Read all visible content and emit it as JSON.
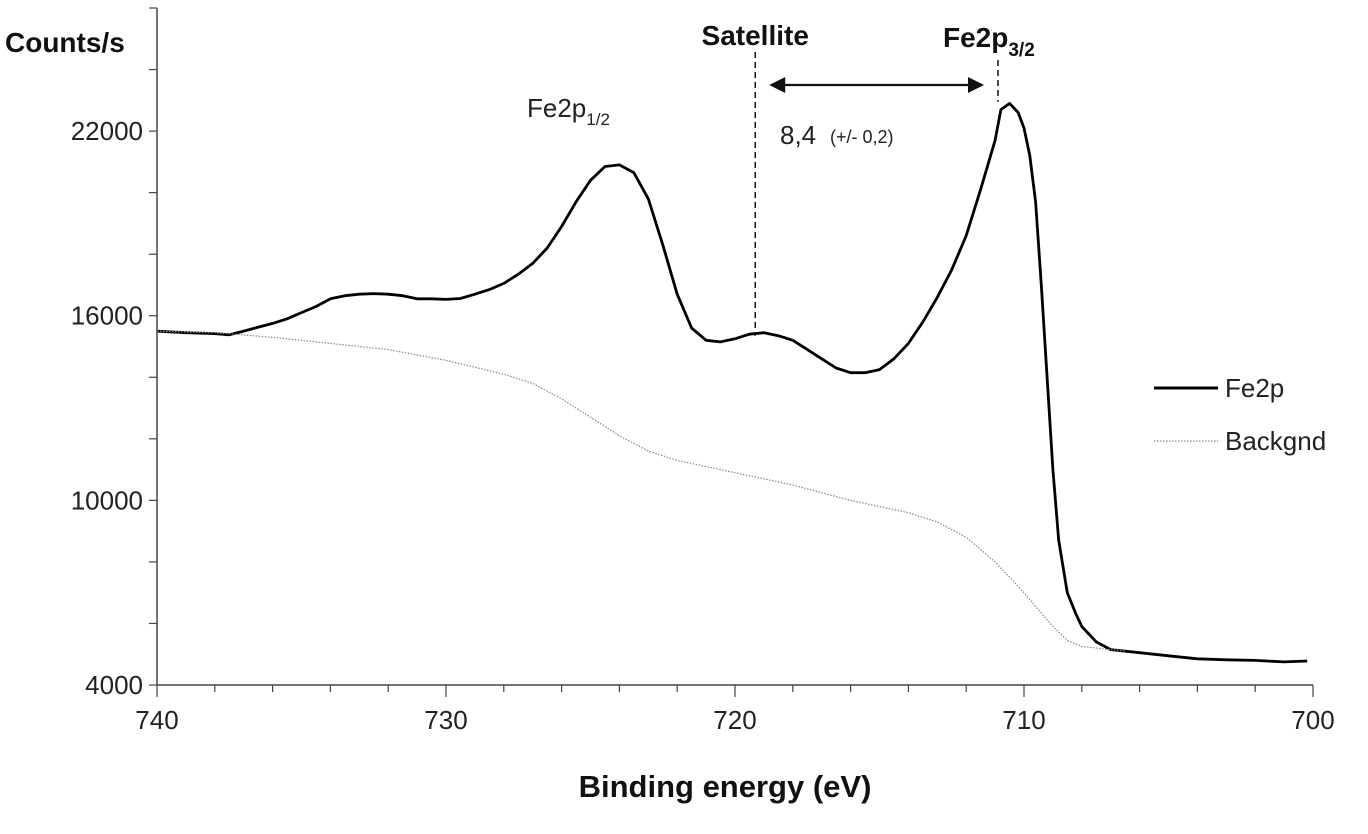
{
  "chart_data": {
    "type": "line",
    "xlabel": "Binding energy (eV)",
    "ylabel": "Counts/s",
    "xlim": [
      740,
      700
    ],
    "x_reversed": true,
    "ylim": [
      4000,
      26000
    ],
    "x_ticks": [
      740,
      730,
      720,
      710,
      700
    ],
    "y_ticks": [
      4000,
      10000,
      16000,
      22000
    ],
    "grid": false,
    "legend_position": "right",
    "series": [
      {
        "name": "Fe2p",
        "style": "solid",
        "color": "#000000",
        "points": [
          [
            740,
            15500
          ],
          [
            739,
            15450
          ],
          [
            738,
            15420
          ],
          [
            737.5,
            15380
          ],
          [
            737,
            15500
          ],
          [
            736,
            15750
          ],
          [
            735.5,
            15900
          ],
          [
            735,
            16100
          ],
          [
            734.5,
            16300
          ],
          [
            734,
            16550
          ],
          [
            733.5,
            16650
          ],
          [
            733,
            16700
          ],
          [
            732.5,
            16720
          ],
          [
            732,
            16700
          ],
          [
            731.5,
            16650
          ],
          [
            731,
            16550
          ],
          [
            730.5,
            16550
          ],
          [
            730,
            16530
          ],
          [
            729.5,
            16560
          ],
          [
            729,
            16700
          ],
          [
            728.5,
            16850
          ],
          [
            728,
            17050
          ],
          [
            727.5,
            17350
          ],
          [
            727,
            17700
          ],
          [
            726.5,
            18200
          ],
          [
            726,
            18900
          ],
          [
            725.5,
            19700
          ],
          [
            725,
            20400
          ],
          [
            724.5,
            20850
          ],
          [
            724,
            20900
          ],
          [
            723.5,
            20650
          ],
          [
            723,
            19800
          ],
          [
            722.5,
            18300
          ],
          [
            722,
            16700
          ],
          [
            721.5,
            15600
          ],
          [
            721,
            15200
          ],
          [
            720.5,
            15150
          ],
          [
            720,
            15250
          ],
          [
            719.5,
            15400
          ],
          [
            719,
            15450
          ],
          [
            718.5,
            15350
          ],
          [
            718,
            15200
          ],
          [
            717.5,
            14900
          ],
          [
            717,
            14600
          ],
          [
            716.5,
            14300
          ],
          [
            716,
            14150
          ],
          [
            715.5,
            14150
          ],
          [
            715,
            14250
          ],
          [
            714.5,
            14600
          ],
          [
            714,
            15100
          ],
          [
            713.5,
            15800
          ],
          [
            713,
            16600
          ],
          [
            712.5,
            17500
          ],
          [
            712,
            18600
          ],
          [
            711.5,
            20100
          ],
          [
            711,
            21700
          ],
          [
            710.8,
            22700
          ],
          [
            710.5,
            22900
          ],
          [
            710.2,
            22600
          ],
          [
            710,
            22100
          ],
          [
            709.8,
            21200
          ],
          [
            709.6,
            19700
          ],
          [
            709.4,
            17000
          ],
          [
            709.2,
            14000
          ],
          [
            709,
            11000
          ],
          [
            708.8,
            8700
          ],
          [
            708.5,
            7000
          ],
          [
            708.2,
            6300
          ],
          [
            708,
            5900
          ],
          [
            707.5,
            5400
          ],
          [
            707,
            5150
          ],
          [
            706,
            5050
          ],
          [
            705,
            4950
          ],
          [
            704,
            4850
          ],
          [
            703,
            4820
          ],
          [
            702,
            4800
          ],
          [
            701,
            4750
          ],
          [
            700.2,
            4780
          ]
        ]
      },
      {
        "name": "Backgnd",
        "style": "dotted",
        "color": "#888888",
        "points": [
          [
            740,
            15500
          ],
          [
            738,
            15450
          ],
          [
            736,
            15300
          ],
          [
            734,
            15100
          ],
          [
            732,
            14900
          ],
          [
            730,
            14550
          ],
          [
            728,
            14100
          ],
          [
            727,
            13800
          ],
          [
            726,
            13300
          ],
          [
            725,
            12700
          ],
          [
            724,
            12100
          ],
          [
            723,
            11600
          ],
          [
            722,
            11300
          ],
          [
            720,
            10900
          ],
          [
            718,
            10500
          ],
          [
            716,
            10000
          ],
          [
            714,
            9600
          ],
          [
            713,
            9300
          ],
          [
            712,
            8800
          ],
          [
            711,
            8000
          ],
          [
            710,
            7000
          ],
          [
            709,
            5900
          ],
          [
            708.5,
            5450
          ],
          [
            708,
            5250
          ],
          [
            707,
            5150
          ],
          [
            706.5,
            5100
          ]
        ]
      }
    ],
    "annotations": {
      "satellite_label": "Satellite",
      "satellite_x": 719.3,
      "fe2p32_label_main": "Fe2p",
      "fe2p32_label_sub": "3/2",
      "fe2p32_x": 710.9,
      "fe2p12_label_main": "Fe2p",
      "fe2p12_label_sub": "1/2",
      "separation_value": "8,4",
      "separation_uncert": "(+/- 0,2)"
    }
  }
}
